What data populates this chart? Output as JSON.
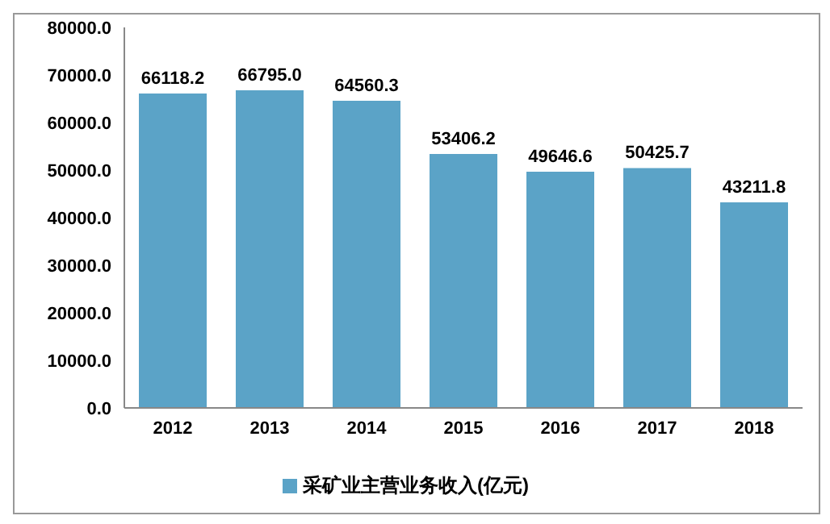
{
  "chart_data": {
    "type": "bar",
    "categories": [
      "2012",
      "2013",
      "2014",
      "2015",
      "2016",
      "2017",
      "2018"
    ],
    "series": [
      {
        "name": "采矿业主营业务收入(亿元)",
        "color": "#5ba3c7",
        "values": [
          66118.2,
          66795.0,
          64560.3,
          53406.2,
          49646.6,
          50425.7,
          43211.8
        ]
      }
    ],
    "value_labels": [
      "66118.2",
      "66795.0",
      "64560.3",
      "53406.2",
      "49646.6",
      "50425.7",
      "43211.8"
    ],
    "ylim": [
      0,
      80000
    ],
    "yticks": [
      {
        "value": 0,
        "label": "0.0"
      },
      {
        "value": 10000,
        "label": "10000.0"
      },
      {
        "value": 20000,
        "label": "20000.0"
      },
      {
        "value": 30000,
        "label": "30000.0"
      },
      {
        "value": 40000,
        "label": "40000.0"
      },
      {
        "value": 50000,
        "label": "50000.0"
      },
      {
        "value": 60000,
        "label": "60000.0"
      },
      {
        "value": 70000,
        "label": "70000.0"
      },
      {
        "value": 80000,
        "label": "80000.0"
      }
    ],
    "grid": false,
    "legend": "bottom"
  }
}
